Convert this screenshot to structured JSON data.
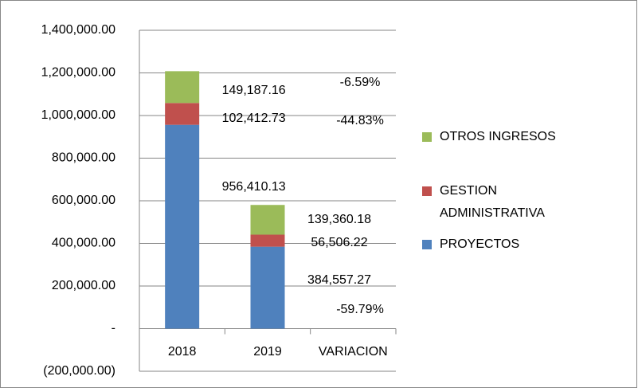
{
  "chart_data": {
    "type": "stacked_bar",
    "categories": [
      "2018",
      "2019",
      "VARIACION"
    ],
    "series": [
      {
        "name": "PROYECTOS",
        "color": "#4f81bd",
        "values": [
          956410.13,
          384557.27,
          null
        ],
        "value_labels": [
          "956,410.13",
          "384,557.27",
          null
        ],
        "change_label": "-59.79%"
      },
      {
        "name": "GESTION ADMINISTRATIVA",
        "color": "#c0504d",
        "values": [
          102412.73,
          56506.22,
          null
        ],
        "value_labels": [
          "102,412.73",
          "56,506.22",
          null
        ],
        "change_label": "-44.83%"
      },
      {
        "name": "OTROS INGRESOS",
        "color": "#9bbb59",
        "values": [
          149187.16,
          139360.18,
          null
        ],
        "value_labels": [
          "149,187.16",
          "139,360.18",
          null
        ],
        "change_label": "-6.59%"
      }
    ],
    "ylim": [
      -200000,
      1400000
    ],
    "yticks": [
      {
        "value": -200000,
        "label": "(200,000.00)"
      },
      {
        "value": 0,
        "label": "-"
      },
      {
        "value": 200000,
        "label": "200,000.00"
      },
      {
        "value": 400000,
        "label": "400,000.00"
      },
      {
        "value": 600000,
        "label": "600,000.00"
      },
      {
        "value": 800000,
        "label": "800,000.00"
      },
      {
        "value": 1000000,
        "label": "1,000,000.00"
      },
      {
        "value": 1200000,
        "label": "1,200,000.00"
      },
      {
        "value": 1400000,
        "label": "1,400,000.00"
      }
    ],
    "grid": true,
    "legend": "right"
  }
}
